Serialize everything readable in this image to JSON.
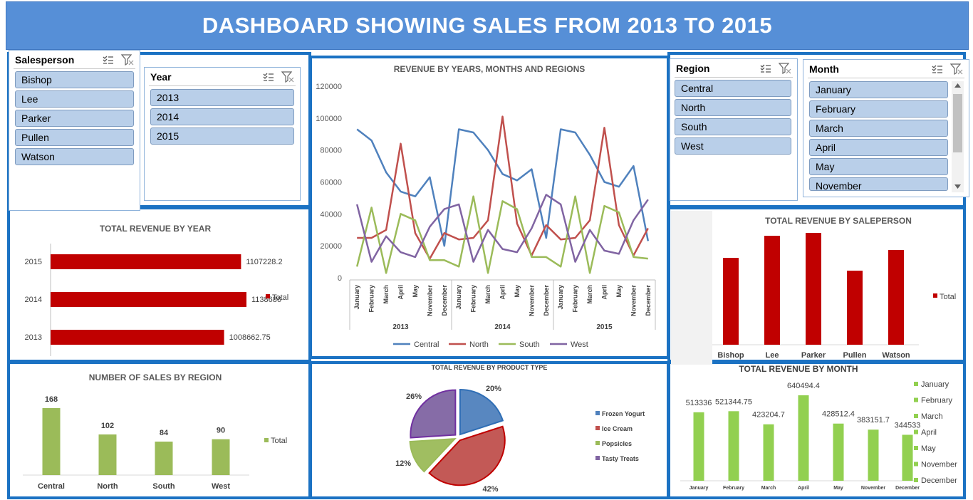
{
  "header": {
    "title": "DASHBOARD SHOWING SALES FROM 2013 TO 2015"
  },
  "slicers": {
    "salesperson": {
      "title": "Salesperson",
      "items": [
        "Bishop",
        "Lee",
        "Parker",
        "Pullen",
        "Watson"
      ]
    },
    "year": {
      "title": "Year",
      "items": [
        "2013",
        "2014",
        "2015"
      ]
    },
    "region": {
      "title": "Region",
      "items": [
        "Central",
        "North",
        "South",
        "West"
      ]
    },
    "month": {
      "title": "Month",
      "items": [
        "January",
        "February",
        "March",
        "April",
        "May",
        "November"
      ]
    }
  },
  "colors": {
    "panel_border": "#1b72c3",
    "title_bar": "#568fd7",
    "red": "#c00000",
    "green": "#92d050",
    "olive": "#9bbb59",
    "central": "#4f81bd",
    "north": "#c0504d",
    "south": "#9bbb59",
    "west": "#8064a2"
  },
  "chart_data": [
    {
      "id": "revenue-by-year",
      "type": "bar",
      "orientation": "horizontal",
      "title": "TOTAL REVENUE BY YEAR",
      "categories": [
        "2015",
        "2014",
        "2013"
      ],
      "values": [
        1107228.2,
        1138686,
        1008662.75
      ],
      "labels": [
        "1107228.2",
        "1138686",
        "1008662.75"
      ],
      "legend": [
        "Total"
      ],
      "legend_position": "right"
    },
    {
      "id": "revenue-by-years-months-regions",
      "type": "line",
      "title": "REVENUE BY YEARS, MONTHS AND  REGIONS",
      "years": [
        "2013",
        "2014",
        "2015"
      ],
      "months": [
        "January",
        "February",
        "March",
        "April",
        "May",
        "November",
        "December"
      ],
      "ylim": [
        0,
        120000
      ],
      "yticks": [
        "120000",
        "100000",
        "80000",
        "60000",
        "40000",
        "20000",
        "0"
      ],
      "grid": false,
      "legend_position": "bottom",
      "series": [
        {
          "name": "Central",
          "values": [
            93000,
            86000,
            66000,
            54000,
            51000,
            63000,
            20000,
            93000,
            91000,
            80000,
            65000,
            61000,
            68000,
            25000,
            93000,
            91000,
            77000,
            60000,
            57000,
            70000,
            23000
          ]
        },
        {
          "name": "North",
          "values": [
            25000,
            25000,
            30000,
            84000,
            28000,
            12000,
            28000,
            24000,
            25000,
            36000,
            101000,
            34000,
            14000,
            33000,
            24000,
            25000,
            36000,
            94000,
            33000,
            14000,
            31000
          ]
        },
        {
          "name": "South",
          "values": [
            7000,
            44000,
            3000,
            40000,
            36000,
            11000,
            11000,
            7000,
            51000,
            3000,
            48000,
            43000,
            13000,
            13000,
            7000,
            51000,
            3000,
            45000,
            41000,
            13000,
            12000
          ]
        },
        {
          "name": "West",
          "values": [
            46000,
            10000,
            26000,
            16000,
            13000,
            32000,
            43000,
            46000,
            10000,
            30000,
            18000,
            16000,
            31000,
            52000,
            46000,
            10000,
            30000,
            17000,
            15000,
            36000,
            49000
          ]
        }
      ]
    },
    {
      "id": "revenue-by-salesperson",
      "type": "bar",
      "title": "TOTAL REVENUE BY  SALEPERSON",
      "categories": [
        "Bishop",
        "Lee",
        "Parker",
        "Pullen",
        "Watson"
      ],
      "values": [
        610000,
        765000,
        785000,
        520000,
        665000
      ],
      "ylim": [
        0,
        900000
      ],
      "legend": [
        "Total"
      ],
      "legend_position": "right"
    },
    {
      "id": "sales-count-by-region",
      "type": "bar",
      "title": "NUMBER OF SALES  BY REGION",
      "categories": [
        "Central",
        "North",
        "South",
        "West"
      ],
      "values": [
        168,
        102,
        84,
        90
      ],
      "labels": [
        "168",
        "102",
        "84",
        "90"
      ],
      "legend": [
        "Total"
      ],
      "legend_position": "right"
    },
    {
      "id": "revenue-by-product-type",
      "type": "pie",
      "title": "TOTAL REVENUE BY PRODUCT TYPE",
      "categories": [
        "Frozen Yogurt",
        "Ice Cream",
        "Popsicles",
        "Tasty Treats"
      ],
      "values": [
        20,
        42,
        12,
        26
      ],
      "labels": [
        "20%",
        "42%",
        "12%",
        "26%"
      ],
      "legend_position": "right"
    },
    {
      "id": "revenue-by-month",
      "type": "bar",
      "title": "TOTAL REVENUE BY MONTH",
      "categories": [
        "January",
        "February",
        "March",
        "April",
        "May",
        "November",
        "December"
      ],
      "values": [
        513336,
        521344.75,
        423204.7,
        640494.4,
        428512.4,
        383151.7,
        344533
      ],
      "labels": [
        "513336",
        "521344.75",
        "423204.7",
        "640494.4",
        "428512.4",
        "383151.7",
        "344533"
      ],
      "legend": [
        "January",
        "February",
        "March",
        "April",
        "May",
        "November",
        "December"
      ],
      "legend_position": "right"
    }
  ]
}
